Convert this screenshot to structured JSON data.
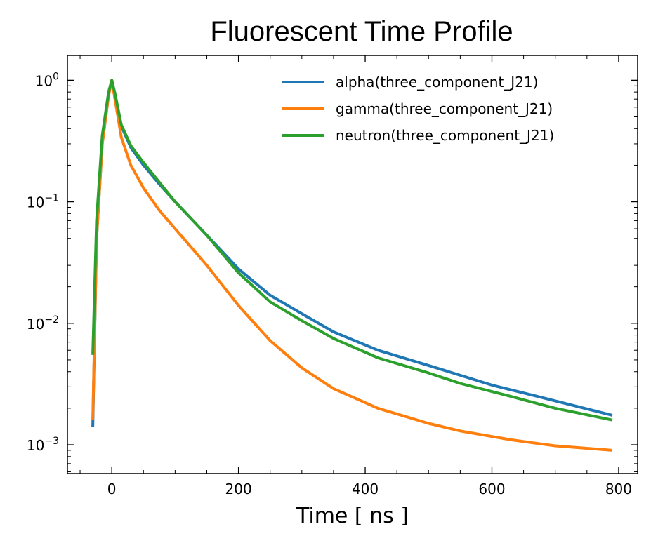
{
  "chart_data": {
    "type": "line",
    "title": "Fluorescent Time Profile",
    "xlabel": "Time [ ns ]",
    "ylabel": "",
    "xlim": [
      -70,
      830
    ],
    "ylim": [
      0.00058,
      1.6
    ],
    "yscale": "log",
    "x_ticks": [
      0,
      200,
      400,
      600,
      800
    ],
    "x_tick_labels": [
      "0",
      "200",
      "400",
      "600",
      "800"
    ],
    "y_ticks": [
      0.001,
      0.01,
      0.1,
      1
    ],
    "y_tick_labels": [
      {
        "base": "10",
        "exp": "−3"
      },
      {
        "base": "10",
        "exp": "−2"
      },
      {
        "base": "10",
        "exp": "−1"
      },
      {
        "base": "10",
        "exp": "0"
      }
    ],
    "grid": false,
    "legend_position": "upper-right",
    "series": [
      {
        "name": "alpha(three_component_J21)",
        "color": "#1f77b4",
        "x": [
          -30,
          -24,
          -15,
          -5,
          0,
          5,
          15,
          30,
          50,
          75,
          100,
          150,
          200,
          250,
          300,
          350,
          420,
          500,
          600,
          700,
          790
        ],
        "y": [
          0.0014,
          0.05,
          0.3,
          0.75,
          1.0,
          0.75,
          0.42,
          0.28,
          0.2,
          0.14,
          0.1,
          0.053,
          0.028,
          0.017,
          0.012,
          0.0085,
          0.006,
          0.0045,
          0.0031,
          0.0023,
          0.00175
        ]
      },
      {
        "name": "gamma(three_component_J21)",
        "color": "#ff7f0e",
        "x": [
          -30,
          -24,
          -15,
          -5,
          0,
          5,
          15,
          30,
          50,
          75,
          100,
          150,
          200,
          250,
          300,
          350,
          420,
          500,
          550,
          630,
          700,
          790
        ],
        "y": [
          0.0016,
          0.05,
          0.3,
          0.75,
          1.0,
          0.7,
          0.34,
          0.2,
          0.13,
          0.085,
          0.06,
          0.03,
          0.014,
          0.0072,
          0.0043,
          0.0029,
          0.002,
          0.0015,
          0.0013,
          0.0011,
          0.00098,
          0.0009
        ]
      },
      {
        "name": "neutron(three_component_J21)",
        "color": "#2ca02c",
        "x": [
          -30,
          -24,
          -15,
          -5,
          0,
          5,
          15,
          30,
          50,
          75,
          100,
          150,
          200,
          250,
          300,
          350,
          420,
          500,
          550,
          630,
          700,
          790
        ],
        "y": [
          0.0055,
          0.07,
          0.35,
          0.8,
          1.0,
          0.78,
          0.43,
          0.29,
          0.21,
          0.145,
          0.1,
          0.053,
          0.026,
          0.015,
          0.0105,
          0.0075,
          0.0052,
          0.0039,
          0.0032,
          0.0025,
          0.002,
          0.0016
        ]
      }
    ]
  }
}
